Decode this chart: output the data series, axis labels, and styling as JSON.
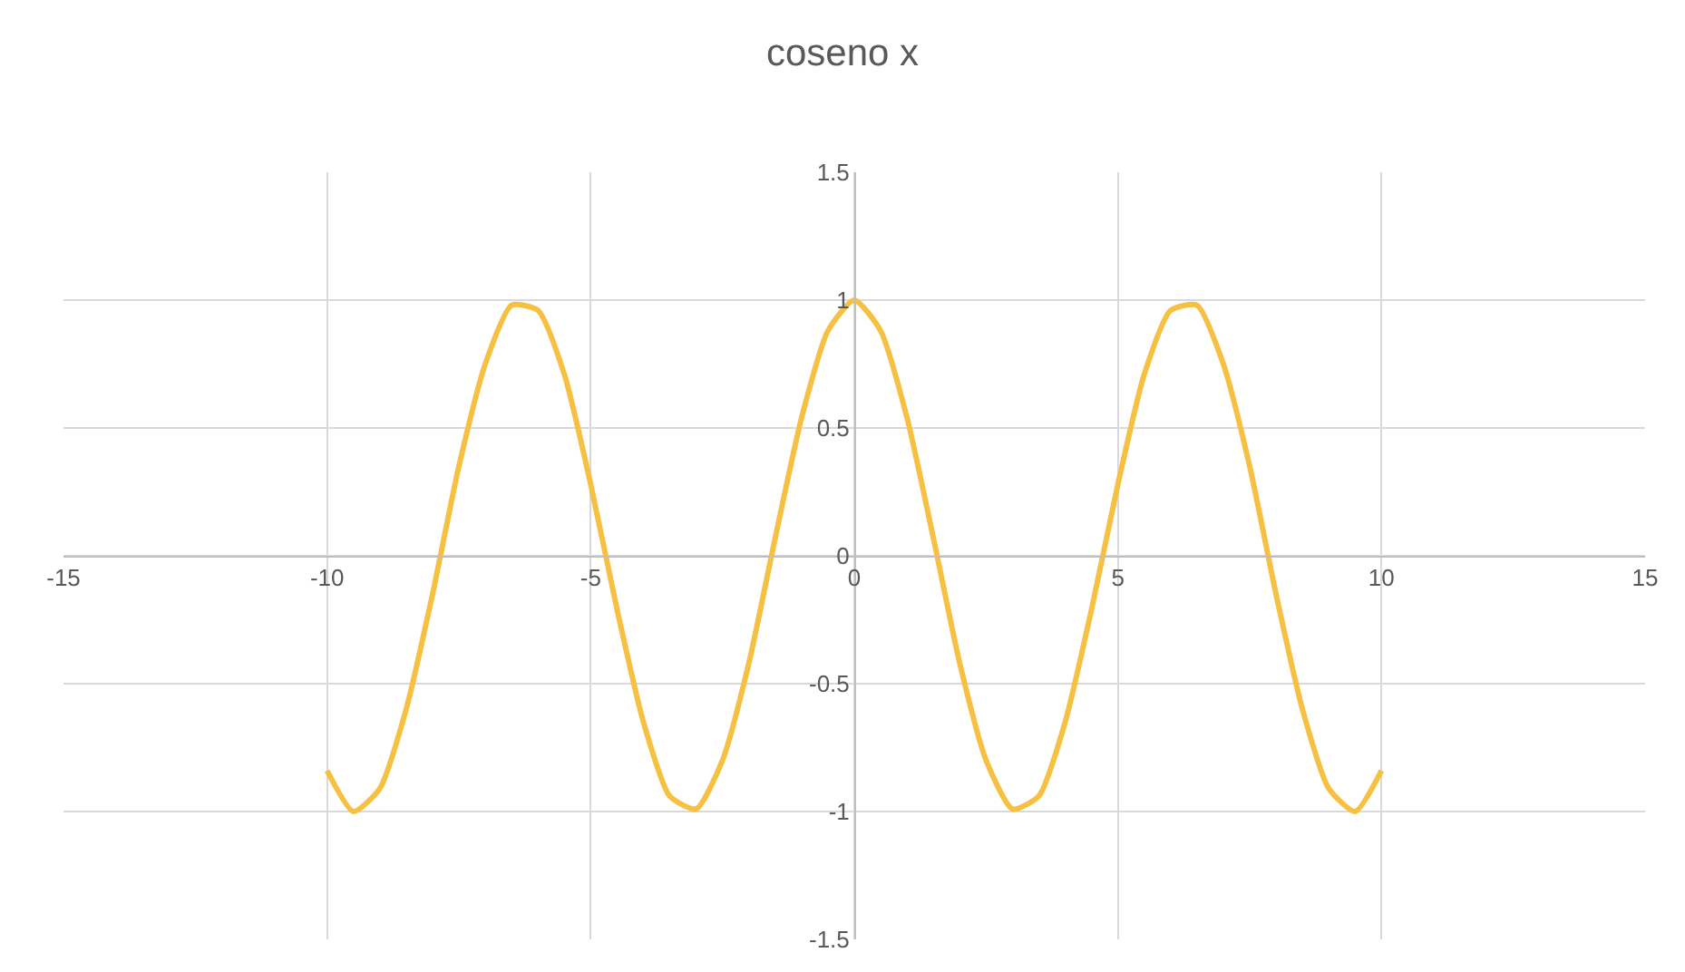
{
  "chart_data": {
    "type": "line",
    "title": "coseno x",
    "x": [
      -10,
      -9.5,
      -9,
      -8.5,
      -8,
      -7.5,
      -7,
      -6.5,
      -6,
      -5.5,
      -5,
      -4.5,
      -4,
      -3.5,
      -3,
      -2.5,
      -2,
      -1.5,
      -1,
      -0.5,
      0,
      0.5,
      1,
      1.5,
      2,
      2.5,
      3,
      3.5,
      4,
      4.5,
      5,
      5.5,
      6,
      6.5,
      7,
      7.5,
      8,
      8.5,
      9,
      9.5,
      10
    ],
    "series": [
      {
        "color": "#f6c142",
        "values": [
          -0.84,
          -1.0,
          -0.91,
          -0.6,
          -0.15,
          0.35,
          0.75,
          0.98,
          0.96,
          0.71,
          0.28,
          -0.21,
          -0.65,
          -0.94,
          -0.99,
          -0.8,
          -0.42,
          0.07,
          0.54,
          0.88,
          1,
          0.88,
          0.54,
          0.07,
          -0.42,
          -0.8,
          -0.99,
          -0.94,
          -0.65,
          -0.21,
          0.28,
          0.71,
          0.96,
          0.98,
          0.75,
          0.35,
          -0.15,
          -0.6,
          -0.91,
          -1.0,
          -0.84
        ]
      }
    ],
    "xlim": [
      -15,
      15
    ],
    "xticks": [
      -15,
      -10,
      -5,
      0,
      5,
      10,
      15
    ],
    "ylim": [
      -1.5,
      1.5
    ],
    "yticks": [
      -1.5,
      -1,
      -0.5,
      0,
      0.5,
      1,
      1.5
    ],
    "grid": true,
    "marker": "none",
    "line_style": "solid"
  }
}
